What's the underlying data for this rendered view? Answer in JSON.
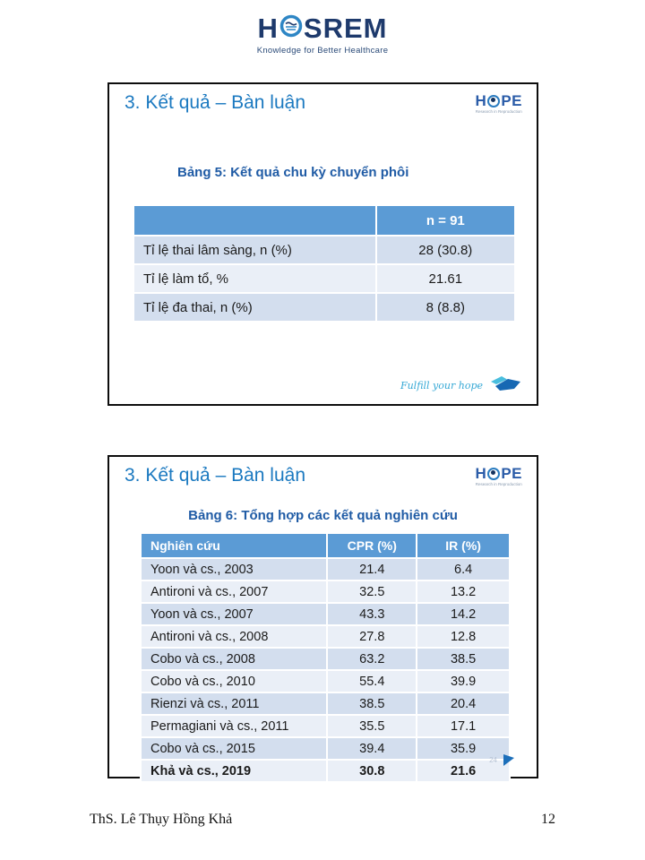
{
  "header_logo": {
    "prefix": "H",
    "suffix": "SREM",
    "tagline": "Knowledge for Better Healthcare"
  },
  "hope_logo": {
    "prefix": "H",
    "suffix": "PE",
    "subtext": "Research in Reproduction"
  },
  "slide1": {
    "title": "3. Kết quả – Bàn luận",
    "caption": "Bảng 5: Kết quả chu kỳ chuyển phôi",
    "table": {
      "header": [
        "",
        "n = 91"
      ],
      "rows": [
        [
          "Tỉ lệ thai lâm sàng, n (%)",
          "28 (30.8)"
        ],
        [
          "Tỉ lệ làm tổ, %",
          "21.61"
        ],
        [
          "Tỉ lệ đa thai, n (%)",
          "8 (8.8)"
        ]
      ]
    },
    "footer_tagline": "Fulfill your hope"
  },
  "slide2": {
    "title": "3. Kết quả – Bàn luận",
    "caption": "Bảng 6: Tổng hợp các kết quả nghiên cứu",
    "table": {
      "header": [
        "Nghiên cứu",
        "CPR (%)",
        "IR (%)"
      ],
      "rows": [
        [
          "Yoon và cs., 2003",
          "21.4",
          "6.4"
        ],
        [
          "Antironi và cs., 2007",
          "32.5",
          "13.2"
        ],
        [
          "Yoon và cs., 2007",
          "43.3",
          "14.2"
        ],
        [
          "Antironi và cs., 2008",
          "27.8",
          "12.8"
        ],
        [
          "Cobo và cs., 2008",
          "63.2",
          "38.5"
        ],
        [
          "Cobo và cs., 2010",
          "55.4",
          "39.9"
        ],
        [
          "Rienzi và cs., 2011",
          "38.5",
          "20.4"
        ],
        [
          "Permagiani và cs., 2011",
          "35.5",
          "17.1"
        ],
        [
          "Cobo và cs., 2015",
          "39.4",
          "35.9"
        ],
        [
          "Khả và cs., 2019",
          "30.8",
          "21.6"
        ]
      ]
    },
    "slide_number": "24"
  },
  "footer": {
    "author": "ThS. Lê Thụy Hồng Khả",
    "page_number": "12"
  },
  "colors": {
    "table_header_blue": "#5b9bd5",
    "band_dark": "#d3deee",
    "band_light": "#eaeff7",
    "slide_title_blue": "#1b79c0",
    "caption_blue": "#1f5ba5",
    "hosrem_navy": "#1e3a6c",
    "hosrem_blue": "#2e86c5",
    "fulfill_blue": "#35a8d5",
    "leaf_light": "#49bede",
    "leaf_dark": "#1668b3"
  }
}
